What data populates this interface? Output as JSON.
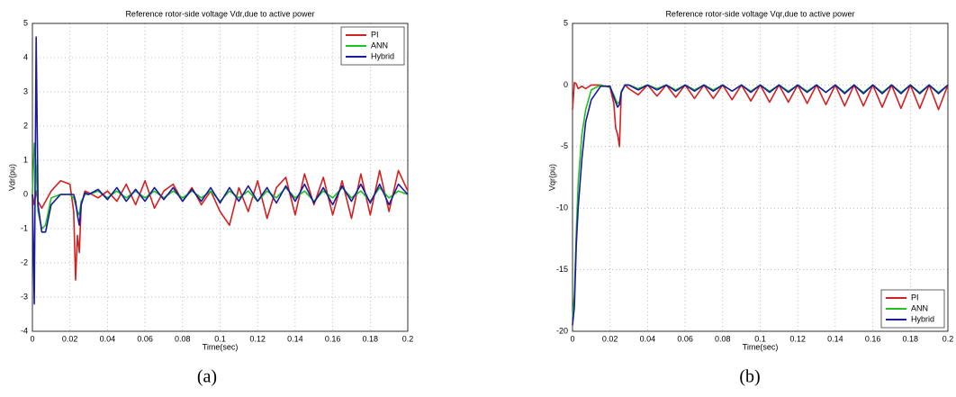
{
  "chart_data": [
    {
      "type": "line",
      "title": "Reference rotor-side voltage Vdr,due to active power",
      "xlabel": "Time(sec)",
      "ylabel": "Vdr(pu)",
      "caption": "(a)",
      "x": [
        0,
        0.001,
        0.002,
        0.003,
        0.005,
        0.007,
        0.01,
        0.015,
        0.02,
        0.022,
        0.023,
        0.024,
        0.025,
        0.026,
        0.028,
        0.03,
        0.035,
        0.04,
        0.045,
        0.05,
        0.055,
        0.06,
        0.065,
        0.07,
        0.075,
        0.08,
        0.085,
        0.09,
        0.095,
        0.1,
        0.105,
        0.11,
        0.115,
        0.12,
        0.125,
        0.13,
        0.135,
        0.14,
        0.145,
        0.15,
        0.155,
        0.16,
        0.165,
        0.17,
        0.175,
        0.18,
        0.185,
        0.19,
        0.195,
        0.2
      ],
      "series": [
        {
          "name": "PI",
          "color": "#d42020",
          "values": [
            0,
            -0.3,
            0.1,
            -0.2,
            -0.4,
            -0.2,
            0.1,
            0.4,
            0.3,
            -0.5,
            -2.5,
            -1.2,
            -1.7,
            -0.3,
            0.1,
            0.05,
            -0.1,
            0.1,
            -0.2,
            0.3,
            -0.3,
            0.4,
            -0.4,
            0.1,
            0.3,
            -0.2,
            0.2,
            -0.3,
            0.1,
            -0.5,
            -0.9,
            0.2,
            -0.5,
            0.4,
            -0.7,
            0.2,
            0.5,
            -0.6,
            0.6,
            -0.3,
            0.5,
            -0.6,
            0.4,
            -0.7,
            0.6,
            -0.6,
            0.7,
            -0.5,
            0.7,
            0.1
          ]
        },
        {
          "name": "ANN",
          "color": "#20c020",
          "values": [
            0,
            1.5,
            0.8,
            -0.5,
            -1,
            -0.9,
            -0.1,
            0,
            0,
            -0.1,
            -0.3,
            -0.5,
            -0.6,
            -0.2,
            0,
            0,
            0.1,
            -0.1,
            0.1,
            -0.1,
            0.1,
            -0.1,
            0.1,
            -0.1,
            0.1,
            -0.1,
            0.1,
            -0.1,
            0.1,
            -0.2,
            0.1,
            -0.1,
            0.1,
            -0.2,
            0.1,
            -0.1,
            0.2,
            -0.1,
            0.1,
            -0.2,
            0.1,
            -0.1,
            0.2,
            -0.1,
            0.1,
            -0.2,
            0.2,
            -0.1,
            0.1,
            0
          ]
        },
        {
          "name": "Hybrid",
          "color": "#1a1aa0",
          "values": [
            0,
            -3.2,
            4.6,
            -0.3,
            -1.1,
            -1.1,
            -0.3,
            0,
            0,
            0,
            -0.2,
            -0.6,
            -0.9,
            -0.3,
            0.05,
            0,
            0.15,
            -0.15,
            0.2,
            -0.2,
            0.15,
            -0.2,
            0.2,
            -0.15,
            0.2,
            -0.2,
            0.15,
            -0.2,
            0.2,
            -0.25,
            0.2,
            -0.2,
            0.25,
            -0.2,
            0.2,
            -0.25,
            0.25,
            -0.2,
            0.3,
            -0.25,
            0.2,
            -0.3,
            0.25,
            -0.2,
            0.3,
            -0.25,
            0.3,
            -0.3,
            0.3,
            0
          ]
        }
      ],
      "xlim": [
        0,
        0.2
      ],
      "ylim": [
        -4,
        5
      ],
      "xticks": [
        0,
        0.02,
        0.04,
        0.06,
        0.08,
        0.1,
        0.12,
        0.14,
        0.16,
        0.18,
        0.2
      ],
      "yticks": [
        -4,
        -3,
        -2,
        -1,
        0,
        1,
        2,
        3,
        4,
        5
      ],
      "grid": true,
      "legend": "upper right"
    },
    {
      "type": "line",
      "title": "Reference rotor-side voltage Vqr,due to active power",
      "xlabel": "Time(sec)",
      "ylabel": "Vqr(pu)",
      "caption": "(b)",
      "x": [
        0,
        0.001,
        0.002,
        0.003,
        0.005,
        0.007,
        0.01,
        0.015,
        0.02,
        0.022,
        0.023,
        0.024,
        0.025,
        0.026,
        0.028,
        0.03,
        0.035,
        0.04,
        0.045,
        0.05,
        0.055,
        0.06,
        0.065,
        0.07,
        0.075,
        0.08,
        0.085,
        0.09,
        0.095,
        0.1,
        0.105,
        0.11,
        0.115,
        0.12,
        0.125,
        0.13,
        0.135,
        0.14,
        0.145,
        0.15,
        0.155,
        0.16,
        0.165,
        0.17,
        0.175,
        0.18,
        0.185,
        0.19,
        0.195,
        0.2
      ],
      "series": [
        {
          "name": "PI",
          "color": "#d42020",
          "values": [
            -2,
            0.2,
            0.1,
            -0.3,
            -0.1,
            -0.3,
            0,
            0,
            -0.2,
            -1.5,
            -3.5,
            -4,
            -5,
            -0.5,
            0,
            -0.3,
            -0.8,
            0,
            -0.9,
            0,
            -1,
            0,
            -1.1,
            0,
            -1.1,
            0,
            -1.2,
            0,
            -1.3,
            0,
            -1.4,
            0,
            -1.4,
            0,
            -1.5,
            0,
            -1.6,
            0,
            -1.7,
            0,
            -1.7,
            0,
            -1.8,
            0,
            -1.9,
            0,
            -1.9,
            0,
            -2,
            0
          ]
        },
        {
          "name": "ANN",
          "color": "#20c020",
          "values": [
            -19,
            -17,
            -12,
            -8,
            -4,
            -2,
            -0.4,
            0,
            -0.2,
            -0.8,
            -1.2,
            -1.5,
            -1.4,
            -0.5,
            0,
            0,
            -0.3,
            0,
            -0.3,
            0,
            -0.4,
            0,
            -0.4,
            0,
            -0.4,
            0,
            -0.5,
            0,
            -0.5,
            0,
            -0.5,
            0,
            -0.5,
            0,
            -0.5,
            0,
            -0.6,
            0,
            -0.6,
            0,
            -0.6,
            0,
            -0.6,
            0,
            -0.6,
            0,
            -0.6,
            0,
            -0.6,
            0
          ]
        },
        {
          "name": "Hybrid",
          "color": "#1a1aa0",
          "values": [
            -19.5,
            -18,
            -13,
            -10,
            -6,
            -3,
            -1.2,
            -0.1,
            -0.1,
            -1,
            -1.4,
            -1.8,
            -1.6,
            -0.6,
            0,
            0,
            -0.4,
            0,
            -0.4,
            0,
            -0.5,
            0,
            -0.5,
            0,
            -0.5,
            0,
            -0.5,
            0,
            -0.6,
            0,
            -0.6,
            0,
            -0.6,
            0,
            -0.6,
            0,
            -0.6,
            0,
            -0.7,
            0,
            -0.7,
            0,
            -0.7,
            0,
            -0.7,
            0,
            -0.7,
            0,
            -0.7,
            0
          ]
        }
      ],
      "xlim": [
        0,
        0.2
      ],
      "ylim": [
        -20,
        5
      ],
      "xticks": [
        0,
        0.02,
        0.04,
        0.06,
        0.08,
        0.1,
        0.12,
        0.14,
        0.16,
        0.18,
        0.2
      ],
      "yticks": [
        -20,
        -15,
        -10,
        -5,
        0,
        5
      ],
      "grid": true,
      "legend": "lower right"
    }
  ]
}
